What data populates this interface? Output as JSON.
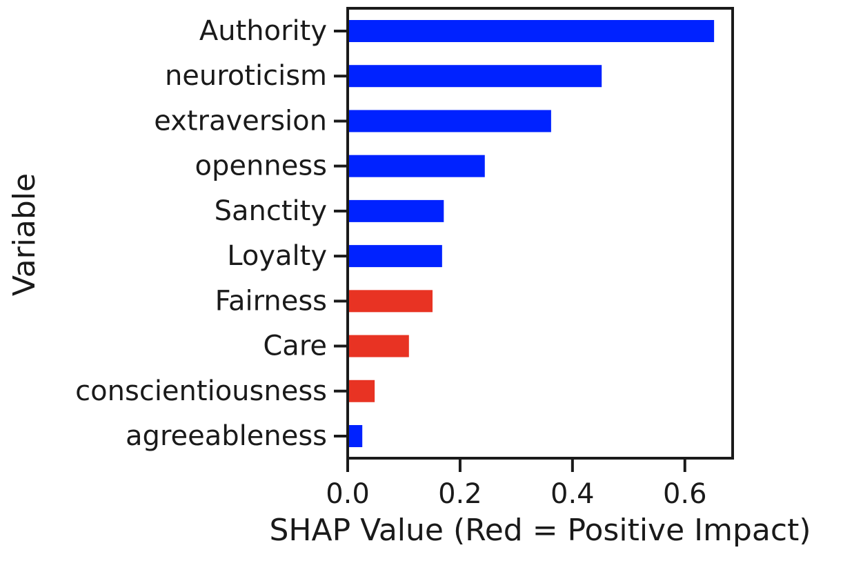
{
  "chart_data": {
    "type": "bar",
    "orientation": "horizontal",
    "xlabel": "SHAP Value (Red = Positive Impact)",
    "ylabel": "Variable",
    "xlim": [
      0,
      0.685
    ],
    "xticks": [
      "0.0",
      "0.2",
      "0.4",
      "0.6"
    ],
    "xtick_values": [
      0.0,
      0.2,
      0.4,
      0.6
    ],
    "categories": [
      "Authority",
      "neuroticism",
      "extraversion",
      "openness",
      "Sanctity",
      "Loyalty",
      "Fairness",
      "Care",
      "conscientiousness",
      "agreeableness"
    ],
    "values": [
      0.652,
      0.452,
      0.362,
      0.244,
      0.171,
      0.168,
      0.151,
      0.109,
      0.048,
      0.026
    ],
    "impact": [
      "negative",
      "negative",
      "negative",
      "negative",
      "negative",
      "negative",
      "positive",
      "positive",
      "positive",
      "negative"
    ],
    "grid": false,
    "legend": "none"
  },
  "colors": {
    "negative": "#0022ff",
    "positive": "#e83323",
    "axis": "#1a1a1a",
    "background": "#ffffff"
  }
}
